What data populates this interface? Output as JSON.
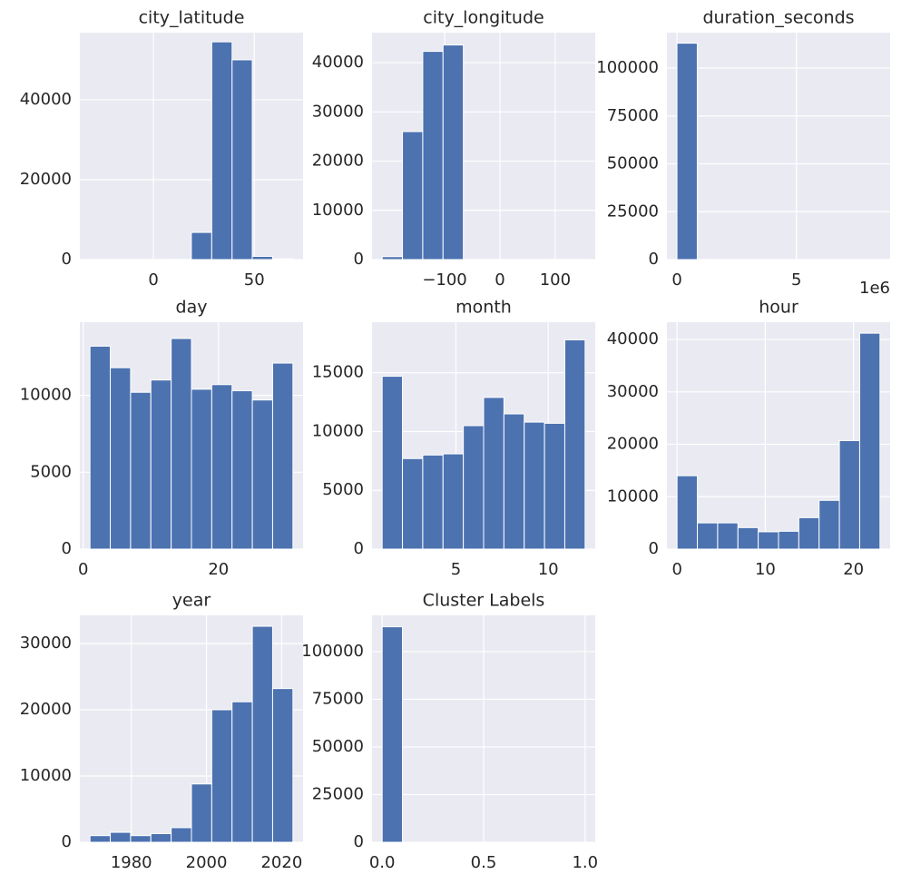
{
  "chart_data": [
    {
      "type": "histogram",
      "title": "city_latitude",
      "color": "#4c72b0",
      "grid": true,
      "bins": [
        -31.5,
        -21.4,
        -11.4,
        -1.3,
        8.8,
        18.8,
        28.9,
        39.0,
        49.0,
        59.1,
        69.2
      ],
      "counts": [
        20,
        10,
        10,
        30,
        50,
        6800,
        54500,
        50000,
        800,
        200
      ],
      "xlim": [
        -36.5,
        74.2
      ],
      "xticks": [
        0,
        50
      ],
      "ylim": [
        0,
        56800
      ],
      "yticks": [
        0,
        20000,
        40000
      ]
    },
    {
      "type": "histogram",
      "title": "city_longitude",
      "color": "#4c72b0",
      "grid": true,
      "bins": [
        -213,
        -176.3,
        -139.6,
        -102.9,
        -66.2,
        -29.5,
        7.2,
        43.9,
        80.6,
        117.3,
        154
      ],
      "counts": [
        600,
        26000,
        42300,
        43600,
        10,
        10,
        5,
        5,
        10,
        15
      ],
      "xlim": [
        -231.4,
        172.4
      ],
      "xticks": [
        {
          "value": -100,
          "label": "−100"
        },
        0,
        100
      ],
      "ylim": [
        0,
        46100
      ],
      "yticks": [
        0,
        10000,
        20000,
        30000,
        40000
      ]
    },
    {
      "type": "histogram",
      "title": "duration_seconds",
      "color": "#4c72b0",
      "grid": true,
      "offset_label": "1e6",
      "bins": [
        0,
        0.85,
        1.7,
        2.55,
        3.4,
        4.25,
        5.1,
        5.95,
        6.8,
        7.65,
        8.5
      ],
      "counts": [
        113000,
        20,
        5,
        2,
        1,
        1,
        0,
        0,
        0,
        1
      ],
      "xlim": [
        -0.42,
        8.92
      ],
      "xticks": [
        0,
        5
      ],
      "ylim": [
        0,
        118500
      ],
      "yticks": [
        0,
        25000,
        50000,
        75000,
        100000
      ]
    },
    {
      "type": "histogram",
      "title": "day",
      "color": "#4c72b0",
      "grid": true,
      "bins": [
        1,
        4,
        7,
        10,
        13,
        16,
        19,
        22,
        25,
        28,
        31
      ],
      "counts": [
        13200,
        11800,
        10200,
        11000,
        13700,
        10400,
        10700,
        10300,
        9700,
        12100
      ],
      "xlim": [
        -0.5,
        32.5
      ],
      "xticks": [
        0,
        20
      ],
      "ylim": [
        0,
        14760
      ],
      "yticks": [
        0,
        5000,
        10000
      ]
    },
    {
      "type": "histogram",
      "title": "month",
      "color": "#4c72b0",
      "grid": true,
      "bins": [
        1,
        2.1,
        3.2,
        4.3,
        5.4,
        6.5,
        7.6,
        8.7,
        9.8,
        10.9,
        12
      ],
      "counts": [
        14700,
        7700,
        8000,
        8100,
        10500,
        12900,
        11500,
        10800,
        10700,
        17800
      ],
      "xlim": [
        0.45,
        12.55
      ],
      "xticks": [
        5,
        10
      ],
      "ylim": [
        0,
        19300
      ],
      "yticks": [
        0,
        5000,
        10000,
        15000
      ]
    },
    {
      "type": "histogram",
      "title": "hour",
      "color": "#4c72b0",
      "grid": true,
      "bins": [
        0,
        2.3,
        4.6,
        6.9,
        9.2,
        11.5,
        13.8,
        16.1,
        18.4,
        20.7,
        23
      ],
      "counts": [
        14000,
        5000,
        5000,
        4100,
        3300,
        3400,
        6000,
        9300,
        20700,
        41200
      ],
      "xlim": [
        -1.15,
        24.15
      ],
      "xticks": [
        0,
        10,
        20
      ],
      "ylim": [
        0,
        43300
      ],
      "yticks": [
        0,
        10000,
        20000,
        30000,
        40000
      ]
    },
    {
      "type": "histogram",
      "title": "year",
      "color": "#4c72b0",
      "grid": true,
      "bins": [
        1969,
        1974.4,
        1979.8,
        1985.2,
        1990.6,
        1996,
        2001.4,
        2006.8,
        2012.2,
        2017.6,
        2023
      ],
      "counts": [
        1000,
        1500,
        1000,
        1300,
        2200,
        8800,
        20000,
        21200,
        32600,
        23200
      ],
      "xlim": [
        1966.3,
        2025.7
      ],
      "xticks": [
        1980,
        2000,
        2020
      ],
      "ylim": [
        0,
        34250
      ],
      "yticks": [
        0,
        10000,
        20000,
        30000
      ]
    },
    {
      "type": "histogram",
      "title": "Cluster Labels",
      "color": "#4c72b0",
      "grid": true,
      "bins": [
        0,
        0.1,
        0.2,
        0.3,
        0.4,
        0.5,
        0.6,
        0.7,
        0.8,
        0.9,
        1
      ],
      "counts": [
        113000,
        0,
        0,
        0,
        0,
        0,
        0,
        0,
        0,
        0
      ],
      "xlim": [
        -0.05,
        1.05
      ],
      "xticks": [
        {
          "value": 0,
          "label": "0.0"
        },
        {
          "value": 0.5,
          "label": "0.5"
        },
        {
          "value": 1,
          "label": "1.0"
        }
      ],
      "ylim": [
        0,
        119000
      ],
      "yticks": [
        0,
        25000,
        50000,
        75000,
        100000
      ]
    }
  ]
}
